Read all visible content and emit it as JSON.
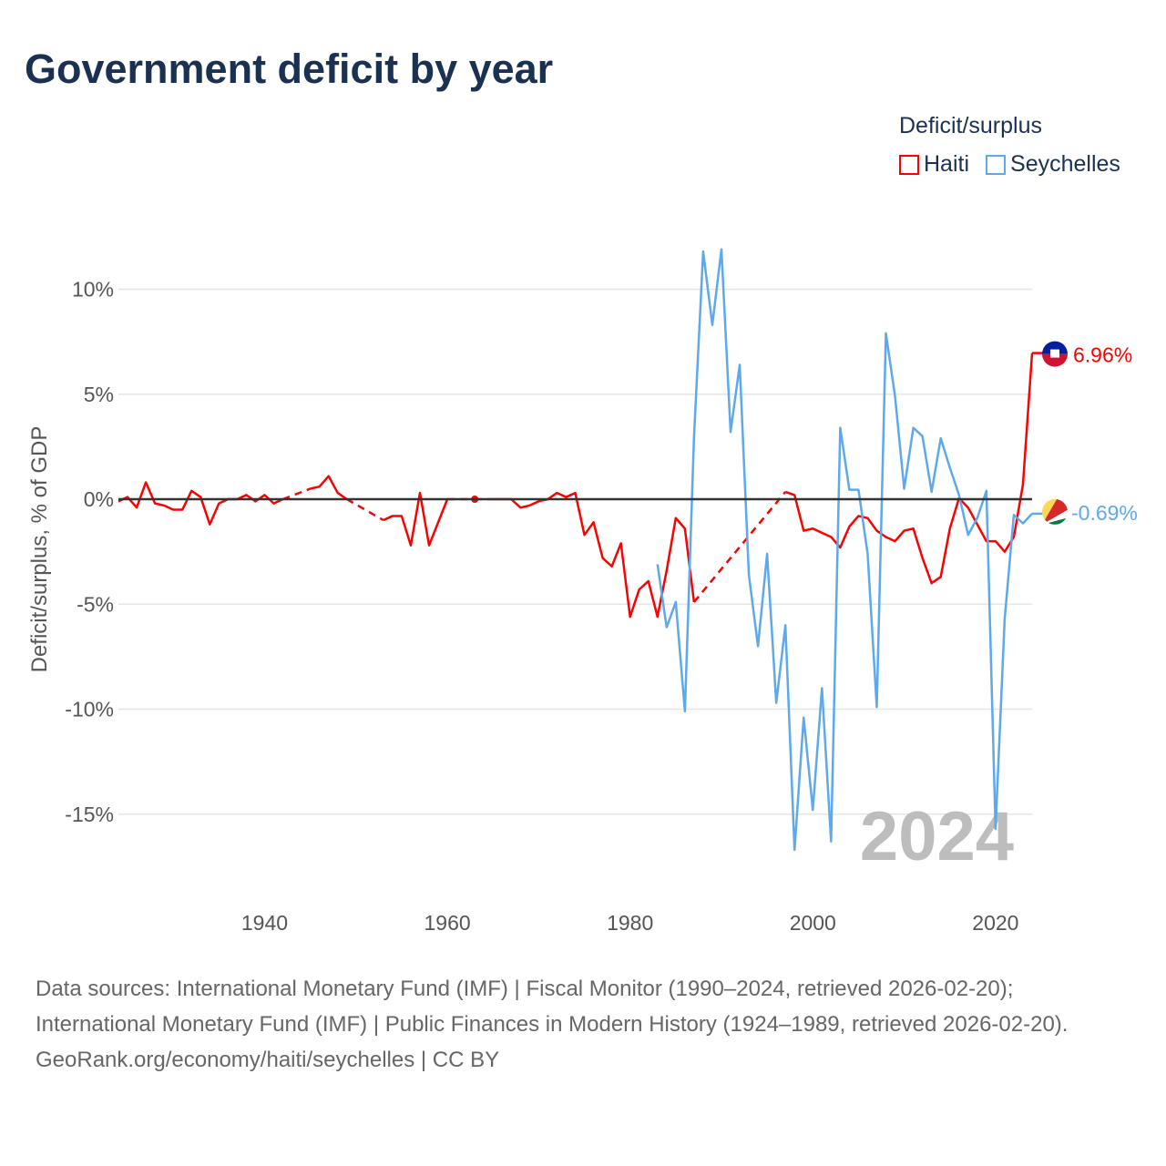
{
  "title": "Government deficit by year",
  "legend": {
    "title": "Deficit/surplus"
  },
  "watermark_year": "2024",
  "footer": {
    "sources": "Data sources: International Monetary Fund (IMF) | Fiscal Monitor (1990–2024, retrieved 2026-02-20); International Monetary Fund (IMF) | Public Finances in Modern History (1924–1989, retrieved 2026-02-20).",
    "credit": "GeoRank.org/economy/haiti/seychelles | CC BY"
  },
  "chart_data": {
    "type": "line",
    "title": "Government deficit by year",
    "xlabel": "",
    "ylabel": "Deficit/surplus, % of GDP",
    "xlim": [
      1924,
      2024
    ],
    "ylim": [
      -18,
      12.5
    ],
    "xticks": [
      1940,
      1960,
      1980,
      2000,
      2020
    ],
    "xtick_labels": [
      "1940",
      "1960",
      "1980",
      "2000",
      "2020"
    ],
    "yticks": [
      10,
      5,
      0,
      -5,
      -10,
      -15
    ],
    "ytick_labels": [
      "10%",
      "5%",
      "0%",
      "-5%",
      "-10%",
      "-15%"
    ],
    "grid": true,
    "legend_position": "top-right",
    "series": [
      {
        "name": "Haiti",
        "color": "#ff0000",
        "end_label": "6.96%",
        "start_year": 1924,
        "values": [
          -0.1,
          0.1,
          -0.4,
          0.8,
          -0.2,
          -0.3,
          -0.5,
          -0.5,
          0.4,
          0.1,
          -1.2,
          -0.2,
          0,
          0,
          0.2,
          -0.1,
          0.2,
          -0.2,
          0,
          null,
          null,
          0.5,
          0.6,
          1.1,
          0.3,
          0,
          null,
          null,
          null,
          -1.0,
          -0.8,
          -0.8,
          -2.2,
          0.3,
          -2.2,
          -1.1,
          0,
          null,
          null,
          0,
          null,
          0,
          0,
          0,
          -0.4,
          -0.3,
          -0.1,
          0,
          0.3,
          0.1,
          0.3,
          -1.7,
          -1.1,
          -2.8,
          -3.2,
          -2.1,
          -5.6,
          -4.3,
          -3.9,
          -5.6,
          -3.4,
          -0.9,
          -1.4,
          -4.9,
          null,
          null,
          null,
          null,
          null,
          null,
          null,
          null,
          null,
          0.35,
          0.2,
          -1.5,
          -1.4,
          -1.6,
          -1.8,
          -2.3,
          -1.3,
          -0.8,
          -0.9,
          -1.5,
          -1.8,
          -2.0,
          -1.5,
          -1.4,
          -2.8,
          -4.0,
          -3.7,
          -1.4,
          0.05,
          -0.4,
          -1.2,
          -2.0,
          -2.0,
          -2.5,
          -1.8,
          0.7,
          6.96
        ]
      },
      {
        "name": "Seychelles",
        "color": "#5ea8ec",
        "end_label": "-0.69%",
        "start_year": 1983,
        "values": [
          -3.1,
          -6.1,
          -4.9,
          -10.1,
          3.0,
          11.8,
          8.3,
          11.9,
          3.2,
          6.4,
          -3.6,
          -7.0,
          -2.6,
          -9.7,
          -6.0,
          -16.7,
          -10.4,
          -14.8,
          -9.0,
          -16.3,
          3.4,
          0.45,
          0.45,
          -2.6,
          -9.9,
          7.9,
          4.9,
          0.5,
          3.4,
          3.0,
          0.35,
          2.9,
          1.5,
          0.2,
          -1.7,
          -0.9,
          0.4,
          -15.7,
          -5.7,
          -0.75,
          -1.15,
          -0.69
        ]
      }
    ]
  }
}
